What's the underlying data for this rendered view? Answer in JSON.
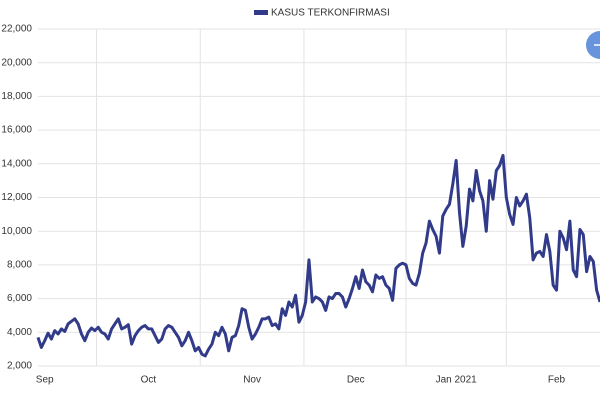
{
  "chart_data": {
    "type": "line",
    "categories": [
      null,
      null,
      "Sep",
      null,
      null,
      null,
      null,
      null,
      null,
      null,
      null,
      null,
      null,
      null,
      null,
      null,
      null,
      null,
      null,
      null,
      null,
      null,
      null,
      null,
      null,
      null,
      null,
      null,
      null,
      null,
      null,
      null,
      null,
      "Oct",
      null,
      null,
      null,
      null,
      null,
      null,
      null,
      null,
      null,
      null,
      null,
      null,
      null,
      null,
      null,
      null,
      null,
      null,
      null,
      null,
      null,
      null,
      null,
      null,
      null,
      null,
      null,
      null,
      null,
      null,
      "Nov",
      null,
      null,
      null,
      null,
      null,
      null,
      null,
      null,
      null,
      null,
      null,
      null,
      null,
      null,
      null,
      null,
      null,
      null,
      null,
      null,
      null,
      null,
      null,
      null,
      null,
      null,
      null,
      null,
      null,
      null,
      "Dec",
      null,
      null,
      null,
      null,
      null,
      null,
      null,
      null,
      null,
      null,
      null,
      null,
      null,
      null,
      null,
      null,
      null,
      null,
      null,
      null,
      null,
      null,
      null,
      null,
      null,
      null,
      null,
      null,
      null,
      "Jan 2021",
      null,
      null,
      null,
      null,
      null,
      null,
      null,
      null,
      null,
      null,
      null,
      null,
      null,
      null,
      null,
      null,
      null,
      null,
      null,
      null,
      null,
      null,
      null,
      null,
      null,
      null,
      null,
      null,
      null,
      "Feb",
      null,
      null,
      null,
      null,
      null,
      null,
      null,
      null,
      null,
      null,
      null,
      null,
      null
    ],
    "series": [
      {
        "name": "KASUS TERKONFIRMASI",
        "color": "#313b8a",
        "values": [
          3700,
          3100,
          3500,
          3950,
          3600,
          4100,
          3900,
          4200,
          4050,
          4500,
          4650,
          4800,
          4500,
          3900,
          3500,
          4000,
          4250,
          4100,
          4300,
          4000,
          3900,
          3600,
          4200,
          4500,
          4800,
          4200,
          4300,
          4450,
          3300,
          3800,
          4100,
          4300,
          4400,
          4200,
          4200,
          3800,
          3400,
          3600,
          4200,
          4400,
          4300,
          4000,
          3700,
          3200,
          3500,
          4000,
          3500,
          2900,
          3100,
          2700,
          2600,
          3000,
          3300,
          4000,
          3800,
          4300,
          3900,
          2900,
          3700,
          3800,
          4400,
          5400,
          5300,
          4300,
          3600,
          3900,
          4300,
          4800,
          4800,
          4900,
          4400,
          4500,
          4200,
          5400,
          5000,
          5800,
          5500,
          6200,
          4600,
          5000,
          5800,
          8300,
          5800,
          6100,
          6000,
          5800,
          5300,
          6100,
          6000,
          6300,
          6300,
          6100,
          5500,
          6000,
          6600,
          7300,
          6600,
          7700,
          7000,
          6800,
          6400,
          7400,
          7200,
          7300,
          6800,
          6600,
          5900,
          7800,
          8000,
          8100,
          8000,
          7200,
          6900,
          6800,
          7500,
          8700,
          9300,
          10600,
          10100,
          9700,
          8700,
          10900,
          11300,
          11600,
          12800,
          14200,
          11100,
          9100,
          10300,
          12500,
          11800,
          13600,
          12400,
          11800,
          10000,
          13000,
          11900,
          13600,
          13900,
          14500,
          12000,
          11000,
          10400,
          12000,
          11500,
          11800,
          12200,
          10800,
          8300,
          8700,
          8800,
          8500,
          9800,
          8800,
          6800,
          6500,
          10000,
          9600,
          8900,
          10600,
          7700,
          7300,
          10100,
          9800,
          7600,
          8500,
          8200,
          6500,
          5800
        ]
      }
    ],
    "ylim": [
      2000,
      22000
    ],
    "yticks": [
      {
        "value": 2000,
        "label": "2,000"
      },
      {
        "value": 4000,
        "label": "4,000"
      },
      {
        "value": 6000,
        "label": "6,000"
      },
      {
        "value": 8000,
        "label": "8,000"
      },
      {
        "value": 10000,
        "label": "10,000"
      },
      {
        "value": 12000,
        "label": "12,000"
      },
      {
        "value": 14000,
        "label": "14,000"
      },
      {
        "value": 16000,
        "label": "16,000"
      },
      {
        "value": 18000,
        "label": "18,000"
      },
      {
        "value": 20000,
        "label": "20,000"
      },
      {
        "value": 22000,
        "label": "22,000"
      }
    ],
    "grid": true,
    "legend": "top"
  }
}
